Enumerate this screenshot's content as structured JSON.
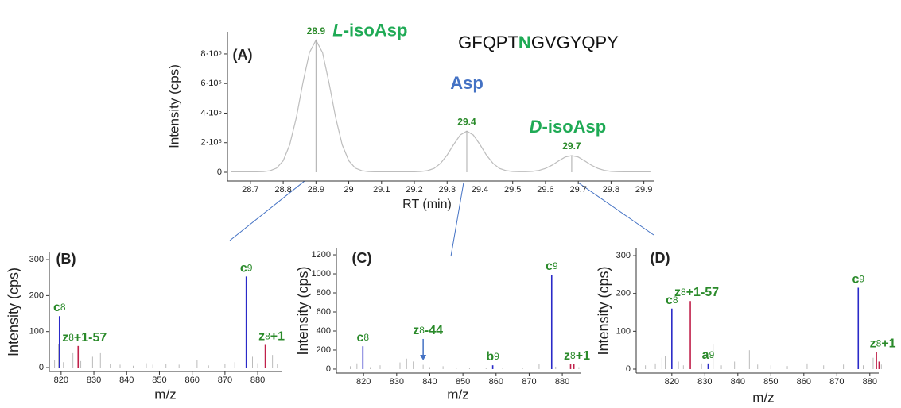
{
  "chart_data": [
    {
      "type": "line",
      "panel": "(A)",
      "xlabel": "RT (min)",
      "ylabel": "Intensity (cps)",
      "color": "#bdbdbd",
      "sequence": [
        "GFQPT",
        "N",
        "GVGYQPY"
      ],
      "sequence_colors": [
        "#111111",
        "#1faa55",
        "#111111"
      ],
      "x": [
        28.64,
        28.66,
        28.68,
        28.7,
        28.72,
        28.74,
        28.76,
        28.78,
        28.8,
        28.82,
        28.84,
        28.86,
        28.88,
        28.9,
        28.92,
        28.94,
        28.96,
        28.98,
        29,
        29.02,
        29.04,
        29.06,
        29.08,
        29.1,
        29.12,
        29.14,
        29.16,
        29.18,
        29.2,
        29.22,
        29.24,
        29.26,
        29.28,
        29.3,
        29.32,
        29.34,
        29.36,
        29.38,
        29.4,
        29.42,
        29.44,
        29.46,
        29.48,
        29.5,
        29.52,
        29.54,
        29.56,
        29.58,
        29.6,
        29.62,
        29.64,
        29.66,
        29.68,
        29.7,
        29.72,
        29.74,
        29.76,
        29.78,
        29.8,
        29.82,
        29.84,
        29.86,
        29.88,
        29.9,
        29.92
      ],
      "values": [
        3000,
        3000,
        3000,
        3000,
        3300,
        4600,
        10000,
        28000,
        78000,
        186000,
        369000,
        603000,
        809000,
        893000,
        809000,
        603000,
        369000,
        186000,
        78000,
        28000,
        10000,
        4600,
        3300,
        3000,
        3000,
        3000,
        3000,
        3100,
        3500,
        5200,
        11000,
        26000,
        60000,
        116000,
        188000,
        252000,
        278000,
        252000,
        188000,
        116000,
        60000,
        26000,
        11000,
        5200,
        3700,
        4000,
        6100,
        12300,
        26000,
        48000,
        77000,
        103000,
        113000,
        103000,
        77000,
        48000,
        26000,
        12300,
        6100,
        4000,
        3500,
        3000,
        3000,
        3000,
        3000
      ],
      "peaks": [
        28.9,
        {
          "value": 29.36,
          "label": "29.4"
        },
        {
          "value": 29.68,
          "label": "29.7"
        }
      ],
      "peak_names": [
        {
          "prefix": "L",
          "name": "-isoAsp",
          "color": "#1faa55"
        },
        {
          "name": "Asp",
          "color": "#4472c4"
        },
        {
          "prefix": "D",
          "name": "-isoAsp",
          "color": "#1faa55"
        }
      ],
      "xlim": [
        28.63,
        29.93
      ],
      "xticks": [
        28.7,
        28.8,
        28.9,
        29,
        29.1,
        29.2,
        29.3,
        29.4,
        29.5,
        29.6,
        29.7,
        29.8,
        29.9
      ],
      "ylim": [
        -59000,
        950000
      ],
      "yticks": [
        0,
        {
          "value": 200000,
          "label": "2·10⁵"
        },
        {
          "value": 400000,
          "label": "4·10⁵"
        },
        {
          "value": 600000,
          "label": "6·10⁵"
        },
        {
          "value": 800000,
          "label": "8·10⁵"
        }
      ]
    },
    {
      "type": "spectrum",
      "panel": "(B)",
      "xlabel": "m/z",
      "ylabel": "Intensity (cps)",
      "color": "#bbbbbb",
      "x": [
        818,
        819.2,
        820.7,
        823.6,
        826,
        829.6,
        832,
        835,
        838,
        842,
        846,
        848,
        852,
        856,
        861.5,
        865,
        870,
        873,
        878.4,
        880,
        884.5,
        886
      ],
      "values": [
        20,
        65,
        15,
        40,
        18,
        30,
        40,
        10,
        8,
        5,
        12,
        8,
        10,
        8,
        20,
        6,
        10,
        15,
        30,
        12,
        35,
        10
      ],
      "ions": [
        {
          "base": "c",
          "index": "8",
          "suffix": "",
          "x": 819.5,
          "value": 143,
          "color": "#2a2ac8"
        },
        {
          "base": "z",
          "index": "8",
          "suffix": "+1-57",
          "x": 825.2,
          "value": 60,
          "color": "#c0204a"
        },
        {
          "base": "c",
          "index": "9",
          "suffix": "",
          "x": 876.5,
          "value": 253,
          "color": "#2a2ac8"
        },
        {
          "base": "z",
          "index": "8",
          "suffix": "+1",
          "x": 882.3,
          "value": 63,
          "color": "#c0204a"
        }
      ],
      "xlim": [
        816.4,
        887.5
      ],
      "xticks": [
        820,
        830,
        840,
        850,
        860,
        870,
        880
      ],
      "ylim": [
        -11,
        320
      ],
      "yticks": [
        0,
        100,
        200,
        300
      ]
    },
    {
      "type": "spectrum",
      "panel": "(C)",
      "xlabel": "m/z",
      "ylabel": "Intensity (cps)",
      "color": "#bbbbbb",
      "x": [
        816,
        818,
        822,
        825,
        828,
        831,
        833,
        835,
        838,
        840,
        844,
        848,
        852,
        857,
        862,
        868,
        873,
        878,
        885
      ],
      "values": [
        30,
        60,
        20,
        40,
        35,
        70,
        110,
        80,
        45,
        20,
        30,
        10,
        8,
        15,
        12,
        10,
        50,
        25,
        20
      ],
      "ions": [
        {
          "base": "c",
          "index": "8",
          "suffix": "",
          "x": 819.8,
          "value": 240,
          "color": "#2a2ac8"
        },
        {
          "base": "b",
          "index": "9",
          "suffix": "",
          "x": 859,
          "value": 40,
          "color": "#2a2ac8"
        },
        {
          "base": "c",
          "index": "9",
          "suffix": "",
          "x": 876.8,
          "value": 990,
          "color": "#2a2ac8"
        },
        {
          "base": "z",
          "index": "8",
          "suffix": "+1",
          "x": 882.5,
          "value": 50,
          "color": "#c0204a"
        },
        {
          "x": 883.5,
          "value": 50,
          "color": "#c0204a"
        }
      ],
      "annotations": [
        {
          "base": "z",
          "index": "8",
          "suffix": "-44",
          "x": 838
        }
      ],
      "xlim": [
        811.8,
        885.5
      ],
      "xticks": [
        820,
        830,
        840,
        850,
        860,
        870,
        880
      ],
      "ylim": [
        -42,
        1267
      ],
      "yticks": [
        0,
        200,
        400,
        600,
        800,
        1000,
        1200
      ]
    },
    {
      "type": "spectrum",
      "panel": "(D)",
      "xlabel": "m/z",
      "ylabel": "Intensity (cps)",
      "color": "#bbbbbb",
      "x": [
        812,
        815,
        817,
        818,
        822,
        823.5,
        829,
        832.5,
        835,
        839,
        843.5,
        846,
        850,
        855,
        861,
        866,
        872,
        878,
        881,
        883.5
      ],
      "values": [
        10,
        15,
        30,
        35,
        20,
        10,
        15,
        65,
        10,
        20,
        50,
        12,
        10,
        8,
        15,
        10,
        12,
        10,
        30,
        12
      ],
      "ions": [
        {
          "base": "c",
          "index": "8",
          "suffix": "",
          "x": 820,
          "value": 160,
          "color": "#2a2ac8"
        },
        {
          "base": "z",
          "index": "8",
          "suffix": "+1-57",
          "x": 825.6,
          "value": 180,
          "color": "#c0204a"
        },
        {
          "base": "a",
          "index": "9",
          "suffix": "",
          "x": 831,
          "value": 15,
          "color": "#2a2ac8"
        },
        {
          "base": "c",
          "index": "9",
          "suffix": "",
          "x": 876.5,
          "value": 215,
          "color": "#2a2ac8"
        },
        {
          "base": "z",
          "index": "8",
          "suffix": "+1",
          "x": 882,
          "value": 45,
          "color": "#c0204a"
        },
        {
          "x": 882.8,
          "value": 20,
          "color": "#c0204a"
        }
      ],
      "xlim": [
        809.2,
        882.7
      ],
      "xticks": [
        820,
        830,
        840,
        850,
        860,
        870,
        880
      ],
      "ylim": [
        -10.5,
        319
      ],
      "yticks": [
        0,
        100,
        200,
        300
      ]
    }
  ]
}
